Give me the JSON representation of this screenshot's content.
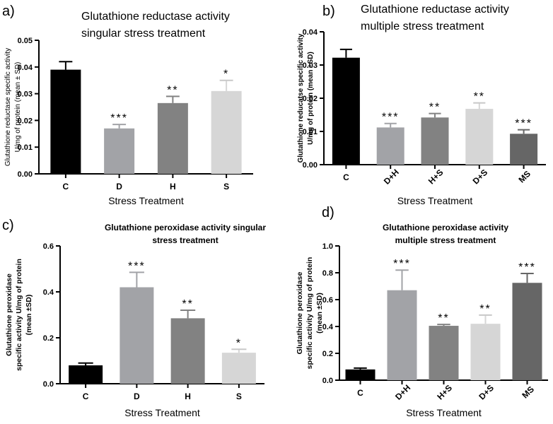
{
  "chart_data": [
    {
      "type": "bar",
      "panel_label": "a)",
      "title_lines": [
        "Glutathione reductase activity",
        "singular stress treatment"
      ],
      "ylabel_lines": [
        "Glutathione reductase specific activity",
        "U/mg of protein (mean ± SD)"
      ],
      "xlabel": "Stress Treatment",
      "categories": [
        "C",
        "D",
        "H",
        "S"
      ],
      "values": [
        0.039,
        0.017,
        0.0265,
        0.031
      ],
      "errors": [
        0.003,
        0.0015,
        0.0025,
        0.004
      ],
      "significance": [
        "",
        "***",
        "**",
        "*"
      ],
      "colors": [
        "#000000",
        "#a2a3a7",
        "#828282",
        "#d6d6d6"
      ],
      "ylim": [
        0,
        0.05
      ],
      "yticks": [
        "0.00",
        "0.01",
        "0.02",
        "0.03",
        "0.04",
        "0.05"
      ]
    },
    {
      "type": "bar",
      "panel_label": "b)",
      "title_lines": [
        "Glutathione reductase activity",
        "multiple stress treatment"
      ],
      "ylabel_lines": [
        "Glutathione reducatse specific activity",
        "U/mg of protein (mean ±SD)"
      ],
      "xlabel": "Stress Treatment",
      "categories": [
        "C",
        "D+H",
        "H+S",
        "D+S",
        "MS"
      ],
      "values": [
        0.0322,
        0.0112,
        0.0142,
        0.0168,
        0.0093
      ],
      "errors": [
        0.0025,
        0.0012,
        0.0012,
        0.0018,
        0.0012
      ],
      "significance": [
        "",
        "***",
        "**",
        "**",
        "***"
      ],
      "colors": [
        "#000000",
        "#a2a3a7",
        "#828282",
        "#d6d6d6",
        "#666666"
      ],
      "ylim": [
        0,
        0.04
      ],
      "yticks": [
        "0.00",
        "0.01",
        "0.02",
        "0.03",
        "0.04"
      ]
    },
    {
      "type": "bar",
      "panel_label": "c)",
      "title_lines": [
        "Glutathione peroxidase activity singular",
        "stress treatment"
      ],
      "ylabel_lines": [
        "Glutathione peroxidase",
        "specific activity U/mg of protein",
        "(mean ±SD)"
      ],
      "xlabel": "Stress Treatment",
      "categories": [
        "C",
        "D",
        "H",
        "S"
      ],
      "values": [
        0.08,
        0.42,
        0.285,
        0.135
      ],
      "errors": [
        0.01,
        0.065,
        0.035,
        0.015
      ],
      "significance": [
        "",
        "***",
        "**",
        "*"
      ],
      "colors": [
        "#000000",
        "#a2a3a7",
        "#828282",
        "#d6d6d6"
      ],
      "ylim": [
        0,
        0.6
      ],
      "yticks": [
        "0.0",
        "0.2",
        "0.4",
        "0.6"
      ]
    },
    {
      "type": "bar",
      "panel_label": "d)",
      "title_lines": [
        "Glutathione peroxidase activity",
        "multiple stress treatment"
      ],
      "ylabel_lines": [
        "Glutathione peroxidase",
        "specific activity U/mg of protein",
        "(mean ±SD)"
      ],
      "xlabel": "Stress Treatment",
      "categories": [
        "C",
        "D+H",
        "H+S",
        "D+S",
        "MS"
      ],
      "values": [
        0.08,
        0.67,
        0.405,
        0.42,
        0.725
      ],
      "errors": [
        0.01,
        0.15,
        0.01,
        0.065,
        0.07
      ],
      "significance": [
        "",
        "***",
        "**",
        "**",
        "***"
      ],
      "colors": [
        "#000000",
        "#a2a3a7",
        "#828282",
        "#d6d6d6",
        "#666666"
      ],
      "ylim": [
        0,
        1.0
      ],
      "yticks": [
        "0.0",
        "0.2",
        "0.4",
        "0.6",
        "0.8",
        "1.0"
      ]
    }
  ]
}
